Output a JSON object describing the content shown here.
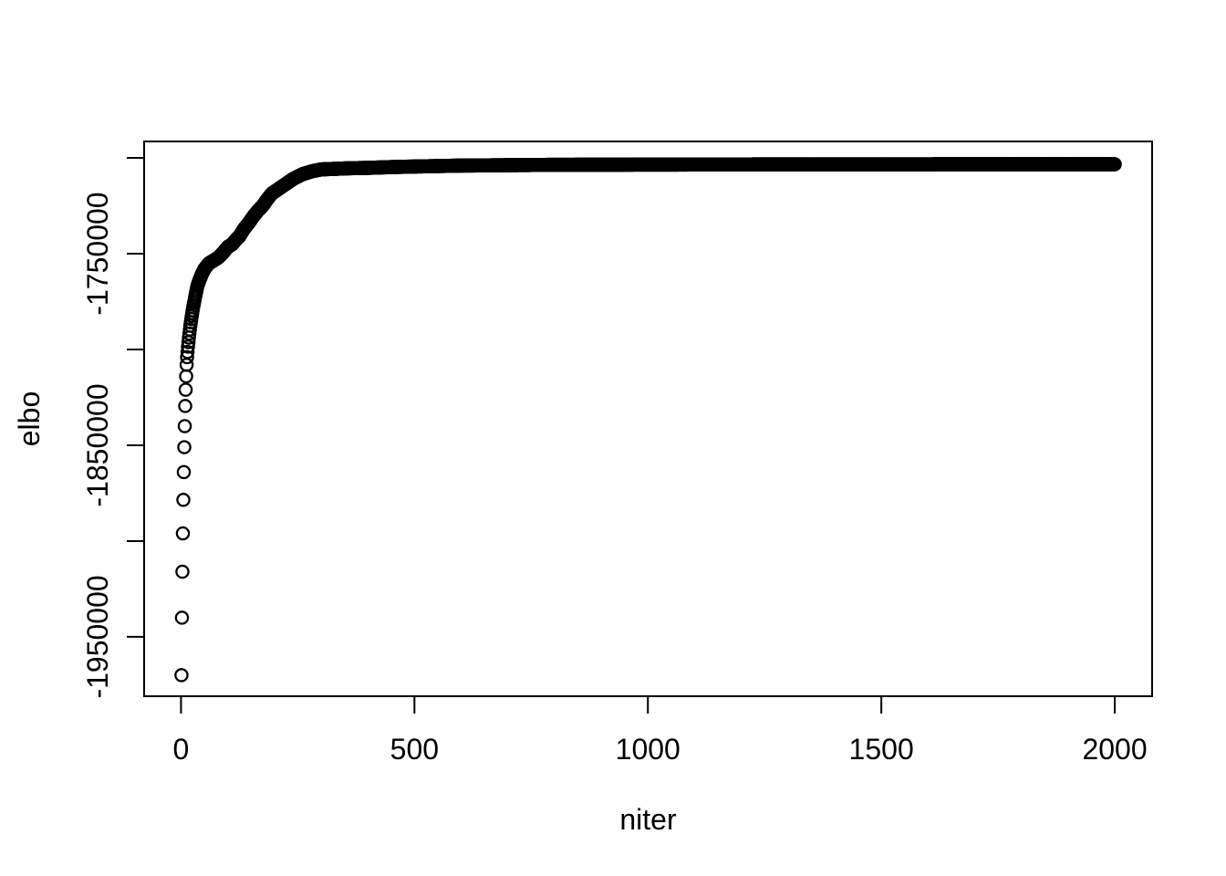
{
  "figure": {
    "background": "#ffffff",
    "foreground": "#000000"
  },
  "chart_data": {
    "type": "scatter",
    "title": "",
    "xlabel": "niter",
    "ylabel": "elbo",
    "marker": "open-circle",
    "marker_color": "#000000",
    "grid": false,
    "legend": null,
    "xlim": [
      -79,
      2080
    ],
    "ylim": [
      -1981000,
      -1691400
    ],
    "x_ticks": [
      0,
      500,
      1000,
      1500,
      2000
    ],
    "x_tick_labels": [
      "0",
      "500",
      "1000",
      "1500",
      "2000"
    ],
    "y_ticks": [
      -1950000,
      -1900000,
      -1850000,
      -1800000,
      -1750000,
      -1700000
    ],
    "y_tick_labels": [
      "-1950000",
      "",
      "-1850000",
      "",
      "-1750000",
      ""
    ],
    "x_start": 1,
    "x_step": 1,
    "n_points": 2000,
    "series_note": "elbo value for every iteration 1..2000; values between control points are linearly interpolated",
    "control_points": [
      [
        1,
        -1970000
      ],
      [
        2,
        -1940000
      ],
      [
        3,
        -1916000
      ],
      [
        4,
        -1896000
      ],
      [
        5,
        -1878500
      ],
      [
        6,
        -1864000
      ],
      [
        7,
        -1851000
      ],
      [
        8,
        -1840000
      ],
      [
        9,
        -1829500
      ],
      [
        10,
        -1821000
      ],
      [
        11,
        -1814000
      ],
      [
        12,
        -1808000
      ],
      [
        13,
        -1804000
      ],
      [
        15,
        -1798500
      ],
      [
        17,
        -1793800
      ],
      [
        20,
        -1787500
      ],
      [
        23,
        -1782500
      ],
      [
        26,
        -1778000
      ],
      [
        30,
        -1773000
      ],
      [
        35,
        -1767000
      ],
      [
        40,
        -1763500
      ],
      [
        45,
        -1760500
      ],
      [
        50,
        -1758000
      ],
      [
        60,
        -1755000
      ],
      [
        70,
        -1753500
      ],
      [
        80,
        -1752000
      ],
      [
        90,
        -1749500
      ],
      [
        100,
        -1746500
      ],
      [
        110,
        -1745000
      ],
      [
        120,
        -1742000
      ],
      [
        125,
        -1741000
      ],
      [
        135,
        -1737000
      ],
      [
        145,
        -1734000
      ],
      [
        155,
        -1730500
      ],
      [
        165,
        -1727500
      ],
      [
        175,
        -1725000
      ],
      [
        185,
        -1721500
      ],
      [
        195,
        -1718500
      ],
      [
        210,
        -1716000
      ],
      [
        225,
        -1713500
      ],
      [
        240,
        -1711000
      ],
      [
        260,
        -1708500
      ],
      [
        280,
        -1707000
      ],
      [
        300,
        -1706000
      ],
      [
        330,
        -1705700
      ],
      [
        360,
        -1705400
      ],
      [
        400,
        -1705200
      ],
      [
        450,
        -1704800
      ],
      [
        500,
        -1704500
      ],
      [
        600,
        -1704000
      ],
      [
        700,
        -1703800
      ],
      [
        800,
        -1703600
      ],
      [
        1000,
        -1703500
      ],
      [
        1200,
        -1703400
      ],
      [
        1500,
        -1703350
      ],
      [
        2000,
        -1703300
      ]
    ]
  }
}
